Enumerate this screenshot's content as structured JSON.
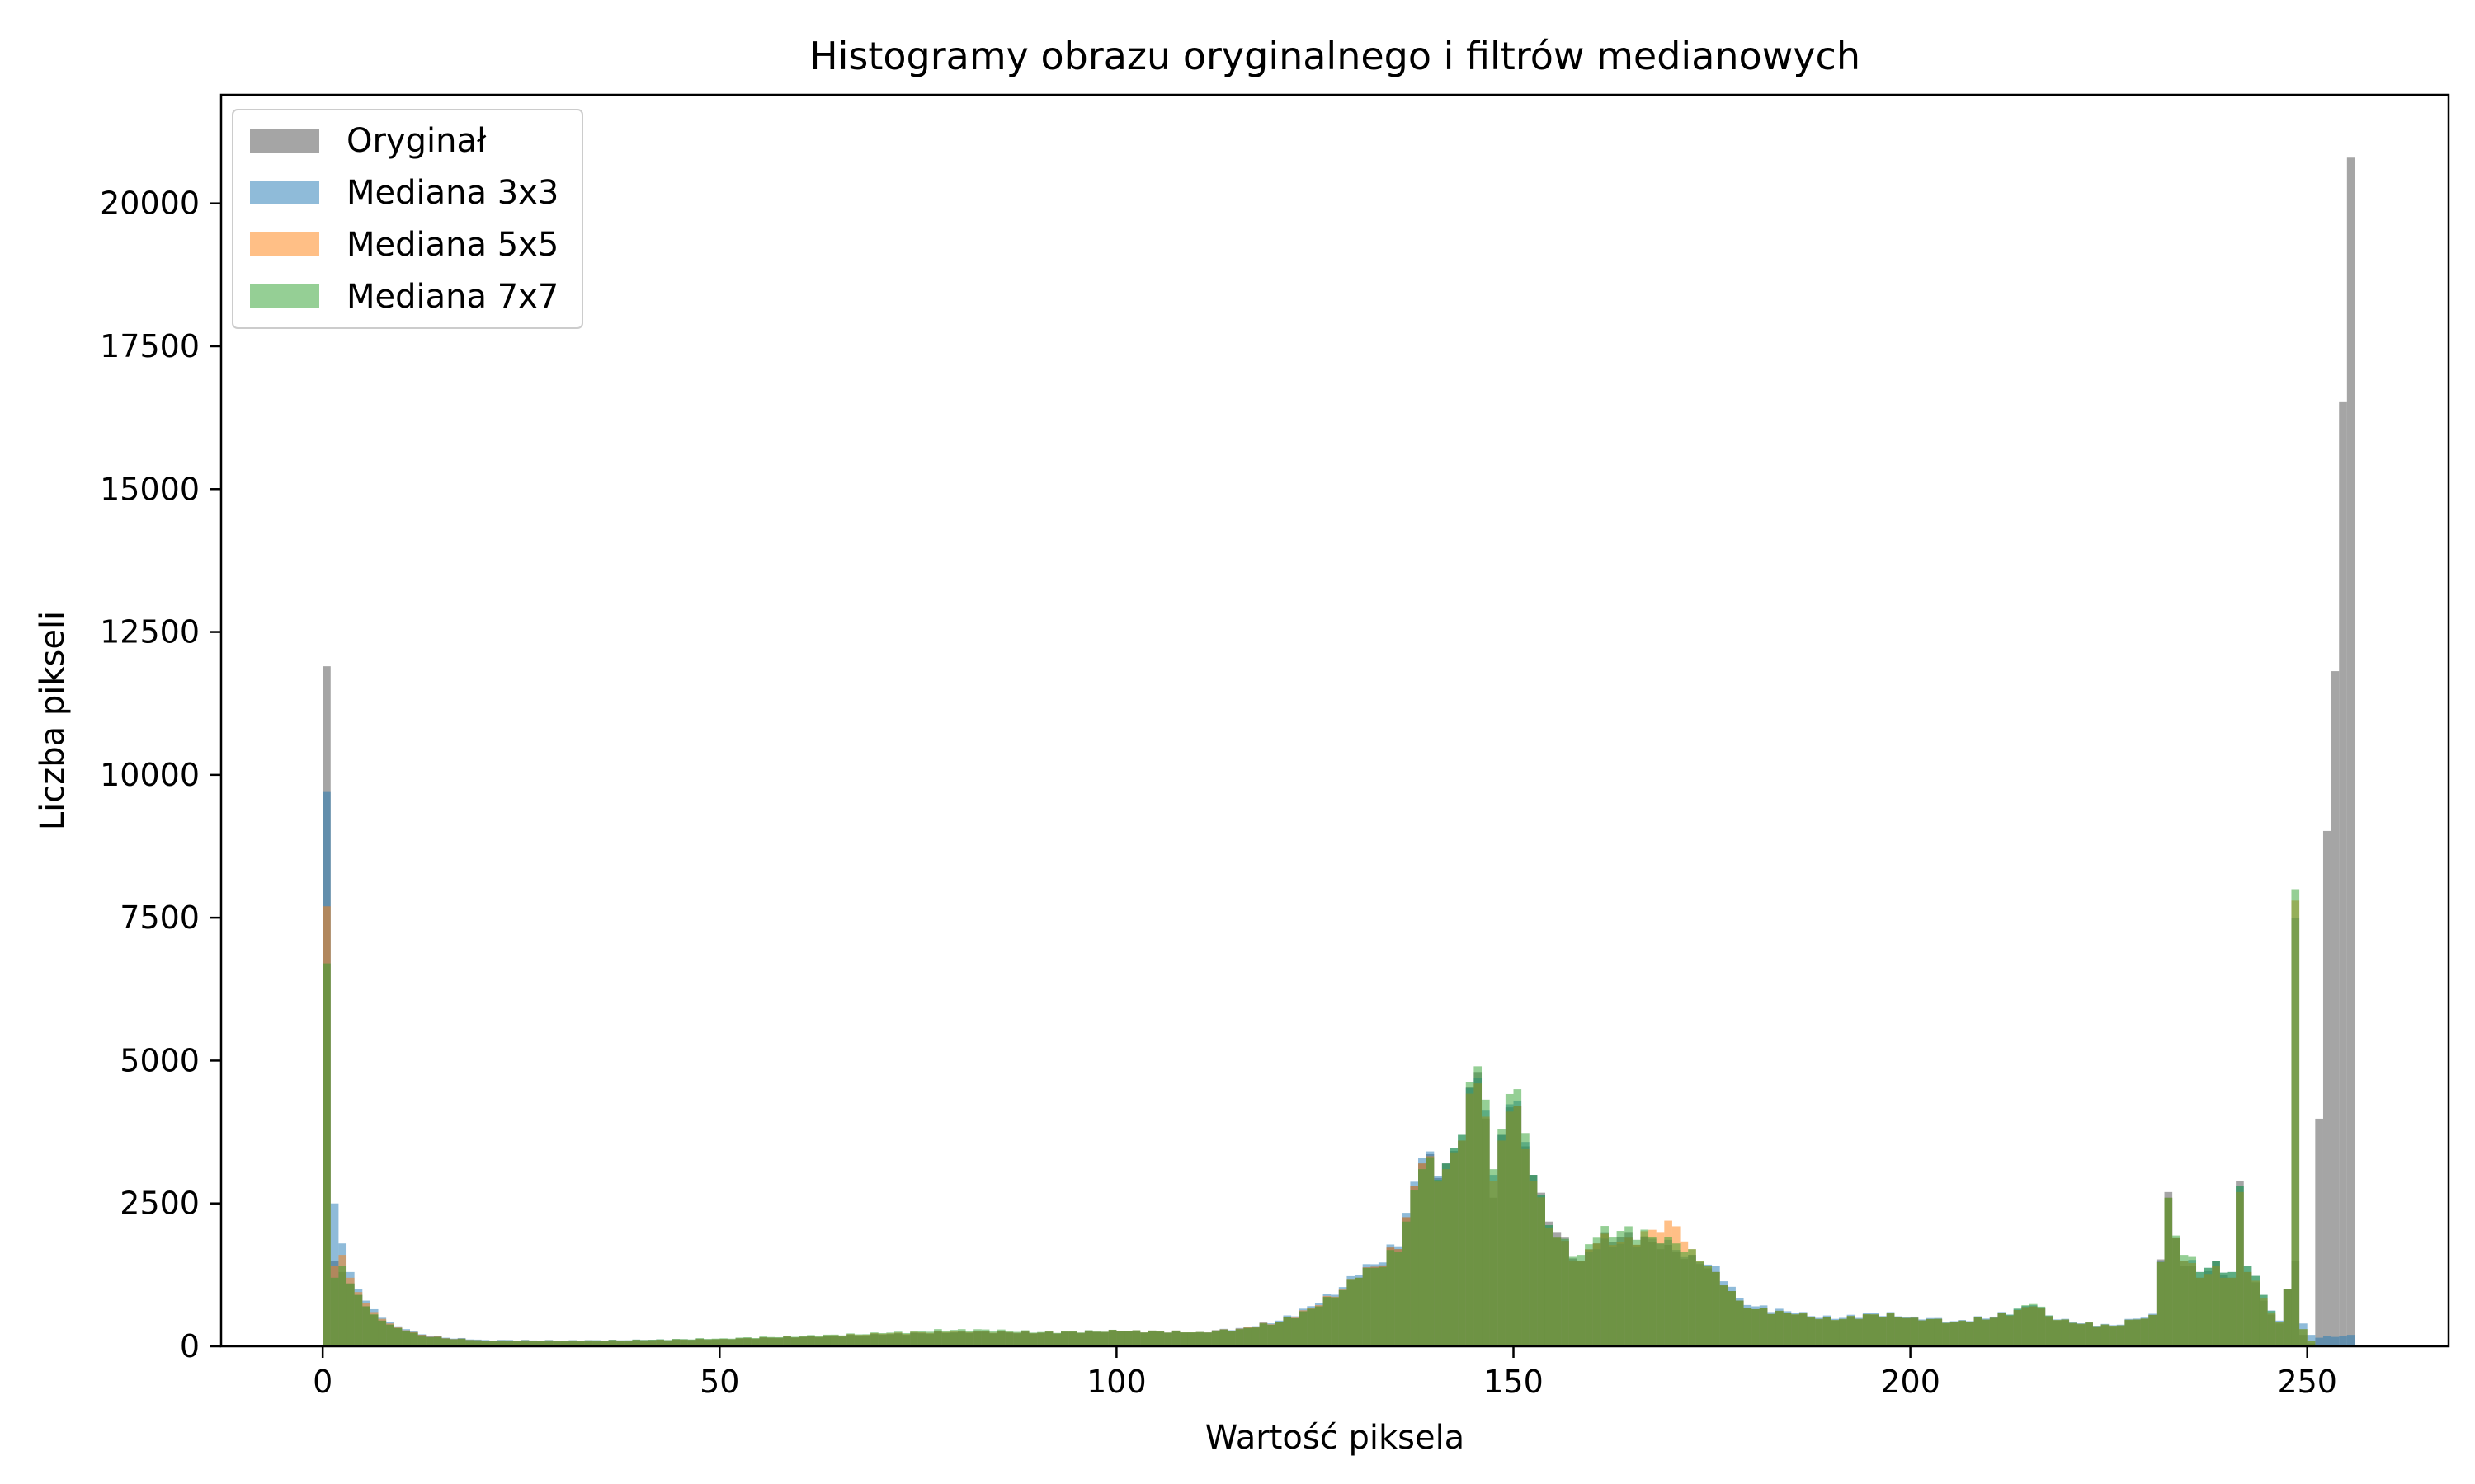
{
  "chart_data": {
    "type": "bar",
    "title": "Histogramy obrazu oryginalnego i filtrów medianowych",
    "xlabel": "Wartość piksela",
    "ylabel": "Liczba pikseli",
    "xlim": [
      -12.8,
      267.8
    ],
    "ylim": [
      0,
      21900
    ],
    "xticks": [
      0,
      50,
      100,
      150,
      200,
      250
    ],
    "yticks": [
      0,
      2500,
      5000,
      7500,
      10000,
      12500,
      15000,
      17500,
      20000
    ],
    "bin_width": 1,
    "grid": false,
    "legend_position": "top-left",
    "series": [
      {
        "name": "Oryginał",
        "color": "#7f7f7f",
        "alpha": 0.7,
        "points": [
          [
            0,
            11900
          ],
          [
            1,
            1500
          ],
          [
            2,
            1300
          ],
          [
            3,
            1100
          ],
          [
            4,
            900
          ],
          [
            5,
            700
          ],
          [
            6,
            550
          ],
          [
            7,
            450
          ],
          [
            8,
            380
          ],
          [
            9,
            320
          ],
          [
            10,
            270
          ],
          [
            12,
            200
          ],
          [
            15,
            140
          ],
          [
            20,
            100
          ],
          [
            30,
            90
          ],
          [
            40,
            100
          ],
          [
            50,
            120
          ],
          [
            60,
            160
          ],
          [
            70,
            200
          ],
          [
            80,
            250
          ],
          [
            90,
            230
          ],
          [
            100,
            260
          ],
          [
            110,
            240
          ],
          [
            115,
            300
          ],
          [
            120,
            420
          ],
          [
            125,
            700
          ],
          [
            130,
            1200
          ],
          [
            135,
            1700
          ],
          [
            138,
            3200
          ],
          [
            141,
            3200
          ],
          [
            143,
            3600
          ],
          [
            145,
            4800
          ],
          [
            147,
            2600
          ],
          [
            148,
            3700
          ],
          [
            150,
            4200
          ],
          [
            152,
            3000
          ],
          [
            155,
            2000
          ],
          [
            158,
            1500
          ],
          [
            160,
            1800
          ],
          [
            164,
            2000
          ],
          [
            168,
            1700
          ],
          [
            172,
            1600
          ],
          [
            175,
            1300
          ],
          [
            178,
            800
          ],
          [
            180,
            650
          ],
          [
            185,
            550
          ],
          [
            190,
            450
          ],
          [
            195,
            550
          ],
          [
            200,
            500
          ],
          [
            205,
            420
          ],
          [
            210,
            500
          ],
          [
            215,
            700
          ],
          [
            218,
            450
          ],
          [
            220,
            400
          ],
          [
            225,
            350
          ],
          [
            230,
            550
          ],
          [
            232,
            2700
          ],
          [
            234,
            1400
          ],
          [
            236,
            1200
          ],
          [
            238,
            1500
          ],
          [
            240,
            1200
          ],
          [
            241,
            2900
          ],
          [
            242,
            1300
          ],
          [
            244,
            800
          ],
          [
            246,
            400
          ],
          [
            247,
            1000
          ],
          [
            248,
            1500
          ],
          [
            249,
            200
          ],
          [
            250,
            50
          ],
          [
            255,
            20800
          ]
        ]
      },
      {
        "name": "Mediana 3x3",
        "color": "#1f77b4",
        "alpha": 0.5,
        "points": [
          [
            0,
            9700
          ],
          [
            1,
            2500
          ],
          [
            2,
            1800
          ],
          [
            3,
            1300
          ],
          [
            4,
            1000
          ],
          [
            5,
            800
          ],
          [
            6,
            650
          ],
          [
            7,
            500
          ],
          [
            8,
            420
          ],
          [
            9,
            350
          ],
          [
            10,
            300
          ],
          [
            12,
            210
          ],
          [
            15,
            150
          ],
          [
            20,
            110
          ],
          [
            30,
            100
          ],
          [
            40,
            110
          ],
          [
            50,
            130
          ],
          [
            60,
            170
          ],
          [
            70,
            210
          ],
          [
            80,
            260
          ],
          [
            90,
            240
          ],
          [
            100,
            270
          ],
          [
            110,
            250
          ],
          [
            115,
            320
          ],
          [
            120,
            450
          ],
          [
            125,
            750
          ],
          [
            130,
            1250
          ],
          [
            135,
            1750
          ],
          [
            138,
            3300
          ],
          [
            141,
            3200
          ],
          [
            143,
            3700
          ],
          [
            145,
            4700
          ],
          [
            147,
            3000
          ],
          [
            148,
            3700
          ],
          [
            150,
            4300
          ],
          [
            152,
            3000
          ],
          [
            155,
            1900
          ],
          [
            158,
            1500
          ],
          [
            160,
            1700
          ],
          [
            164,
            1900
          ],
          [
            168,
            1800
          ],
          [
            172,
            1600
          ],
          [
            175,
            1400
          ],
          [
            178,
            850
          ],
          [
            180,
            700
          ],
          [
            185,
            580
          ],
          [
            190,
            480
          ],
          [
            195,
            580
          ],
          [
            200,
            520
          ],
          [
            205,
            440
          ],
          [
            210,
            520
          ],
          [
            215,
            720
          ],
          [
            218,
            470
          ],
          [
            220,
            420
          ],
          [
            225,
            370
          ],
          [
            230,
            570
          ],
          [
            232,
            2600
          ],
          [
            234,
            1500
          ],
          [
            236,
            1300
          ],
          [
            238,
            1500
          ],
          [
            240,
            1300
          ],
          [
            241,
            2800
          ],
          [
            242,
            1400
          ],
          [
            244,
            900
          ],
          [
            246,
            450
          ],
          [
            247,
            1000
          ],
          [
            248,
            7500
          ],
          [
            249,
            400
          ],
          [
            250,
            200
          ],
          [
            251,
            150
          ],
          [
            255,
            200
          ]
        ]
      },
      {
        "name": "Mediana 5x5",
        "color": "#ff7f0e",
        "alpha": 0.5,
        "points": [
          [
            0,
            7700
          ],
          [
            1,
            1400
          ],
          [
            2,
            1600
          ],
          [
            3,
            1200
          ],
          [
            4,
            950
          ],
          [
            5,
            750
          ],
          [
            6,
            600
          ],
          [
            7,
            480
          ],
          [
            8,
            400
          ],
          [
            9,
            330
          ],
          [
            10,
            280
          ],
          [
            12,
            200
          ],
          [
            15,
            140
          ],
          [
            20,
            100
          ],
          [
            30,
            95
          ],
          [
            40,
            105
          ],
          [
            50,
            130
          ],
          [
            60,
            170
          ],
          [
            70,
            220
          ],
          [
            80,
            270
          ],
          [
            90,
            240
          ],
          [
            100,
            270
          ],
          [
            110,
            250
          ],
          [
            115,
            310
          ],
          [
            120,
            430
          ],
          [
            125,
            720
          ],
          [
            130,
            1200
          ],
          [
            135,
            1700
          ],
          [
            138,
            3200
          ],
          [
            141,
            3100
          ],
          [
            143,
            3600
          ],
          [
            145,
            4600
          ],
          [
            147,
            2900
          ],
          [
            148,
            3600
          ],
          [
            150,
            4200
          ],
          [
            152,
            2900
          ],
          [
            155,
            1900
          ],
          [
            158,
            1500
          ],
          [
            160,
            1800
          ],
          [
            164,
            1900
          ],
          [
            168,
            2000
          ],
          [
            170,
            2100
          ],
          [
            172,
            1700
          ],
          [
            175,
            1300
          ],
          [
            178,
            800
          ],
          [
            180,
            650
          ],
          [
            185,
            560
          ],
          [
            190,
            460
          ],
          [
            195,
            560
          ],
          [
            200,
            500
          ],
          [
            205,
            430
          ],
          [
            210,
            500
          ],
          [
            215,
            700
          ],
          [
            218,
            460
          ],
          [
            220,
            410
          ],
          [
            225,
            360
          ],
          [
            230,
            550
          ],
          [
            232,
            2600
          ],
          [
            234,
            1500
          ],
          [
            236,
            1200
          ],
          [
            238,
            1400
          ],
          [
            240,
            1200
          ],
          [
            241,
            2700
          ],
          [
            242,
            1300
          ],
          [
            244,
            850
          ],
          [
            246,
            420
          ],
          [
            247,
            1000
          ],
          [
            248,
            7800
          ],
          [
            249,
            300
          ],
          [
            250,
            100
          ]
        ]
      },
      {
        "name": "Mediana 7x7",
        "color": "#2ca02c",
        "alpha": 0.5,
        "points": [
          [
            0,
            6700
          ],
          [
            1,
            1200
          ],
          [
            2,
            1400
          ],
          [
            3,
            1100
          ],
          [
            4,
            900
          ],
          [
            5,
            700
          ],
          [
            6,
            560
          ],
          [
            7,
            450
          ],
          [
            8,
            380
          ],
          [
            9,
            320
          ],
          [
            10,
            270
          ],
          [
            12,
            190
          ],
          [
            15,
            135
          ],
          [
            20,
            100
          ],
          [
            30,
            95
          ],
          [
            40,
            110
          ],
          [
            50,
            140
          ],
          [
            60,
            180
          ],
          [
            70,
            230
          ],
          [
            80,
            300
          ],
          [
            90,
            250
          ],
          [
            100,
            270
          ],
          [
            110,
            250
          ],
          [
            115,
            300
          ],
          [
            120,
            420
          ],
          [
            125,
            700
          ],
          [
            130,
            1200
          ],
          [
            135,
            1650
          ],
          [
            138,
            3100
          ],
          [
            141,
            3200
          ],
          [
            143,
            3700
          ],
          [
            145,
            4900
          ],
          [
            147,
            3100
          ],
          [
            148,
            3800
          ],
          [
            150,
            4500
          ],
          [
            152,
            3000
          ],
          [
            155,
            1900
          ],
          [
            158,
            1600
          ],
          [
            160,
            1900
          ],
          [
            164,
            2100
          ],
          [
            168,
            1800
          ],
          [
            170,
            1800
          ],
          [
            172,
            1700
          ],
          [
            175,
            1300
          ],
          [
            178,
            800
          ],
          [
            180,
            650
          ],
          [
            185,
            560
          ],
          [
            190,
            460
          ],
          [
            195,
            560
          ],
          [
            200,
            500
          ],
          [
            205,
            430
          ],
          [
            210,
            500
          ],
          [
            215,
            740
          ],
          [
            218,
            460
          ],
          [
            220,
            410
          ],
          [
            225,
            360
          ],
          [
            230,
            550
          ],
          [
            232,
            2600
          ],
          [
            234,
            1600
          ],
          [
            236,
            1300
          ],
          [
            238,
            1500
          ],
          [
            240,
            1300
          ],
          [
            241,
            2800
          ],
          [
            242,
            1400
          ],
          [
            244,
            900
          ],
          [
            246,
            430
          ],
          [
            247,
            1000
          ],
          [
            248,
            8000
          ],
          [
            249,
            300
          ],
          [
            250,
            100
          ]
        ]
      }
    ]
  }
}
